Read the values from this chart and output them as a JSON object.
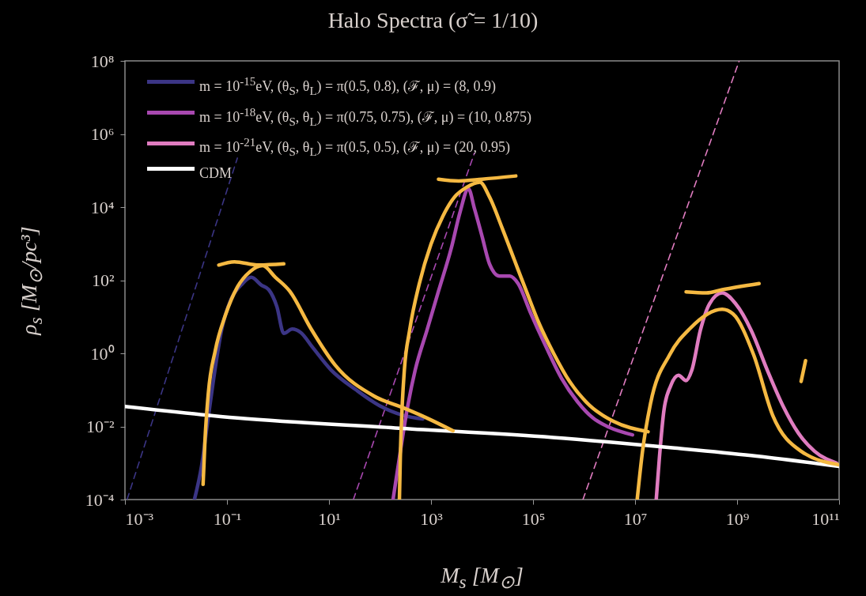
{
  "chart_data": {
    "type": "line",
    "title": "Halo Spectra (σ̃ = 1/10)",
    "xlabel": "M$_{s}$ [M$_{⊙}$]",
    "ylabel": "ρ$_{s}$ [M$_{⊙}$/pc³]",
    "log": "xy",
    "grid": false,
    "legend": "top left",
    "xlim": [
      0.001,
      100000000000
    ],
    "ylim": [
      0.0001,
      100000000
    ],
    "xticks": [
      {
        "value": 0.001,
        "label": "10⁻³"
      },
      {
        "value": 0.1,
        "label": "10⁻¹"
      },
      {
        "value": 10,
        "label": "10¹"
      },
      {
        "value": 1000,
        "label": "10³"
      },
      {
        "value": 100000,
        "label": "10⁵"
      },
      {
        "value": 10000000,
        "label": "10⁷"
      },
      {
        "value": 1000000000,
        "label": "10⁹"
      },
      {
        "value": 100000000000,
        "label": "10¹¹"
      }
    ],
    "yticks": [
      {
        "value": 0.0001,
        "label": "10⁻⁴"
      },
      {
        "value": 0.01,
        "label": "10⁻²"
      },
      {
        "value": 1,
        "label": "10⁰"
      },
      {
        "value": 100,
        "label": "10²"
      },
      {
        "value": 10000,
        "label": "10⁴"
      },
      {
        "value": 1000000,
        "label": "10⁶"
      },
      {
        "value": 100000000,
        "label": "10⁸"
      }
    ],
    "series": [
      {
        "color": "#3b3585",
        "line_style": "dashed",
        "x": [
          0.0011,
          0.16
        ],
        "values": [
          0.0001,
          220000
        ]
      },
      {
        "color": "#a848b0",
        "line_style": "dashed",
        "x": [
          30,
          7100
        ],
        "values": [
          0.0001,
          300000
        ]
      },
      {
        "color": "#e07cc0",
        "line_style": "dashed",
        "x": [
          950000,
          1100000000
        ],
        "values": [
          0.0001,
          100000000
        ]
      },
      {
        "name": "m = 10$^{-15}$eV, (θ$_{S}$, θ$_{L}$) = π(0.5, 0.8), (ℱ, μ) = (8, 0.9)",
        "color": "#3b3585",
        "line_style": "solid",
        "x": [
          0.023,
          0.032,
          0.041,
          0.055,
          0.078,
          0.12,
          0.19,
          0.3,
          0.47,
          0.66,
          0.95,
          1.3,
          1.9,
          2.8,
          4.7,
          11,
          34,
          98,
          290,
          690
        ],
        "values": [
          0.0001,
          0.00089,
          0.011,
          0.21,
          4.2,
          30,
          74,
          120,
          74,
          55,
          19,
          3.5,
          4.6,
          3.7,
          1.5,
          0.35,
          0.1,
          0.037,
          0.02,
          0.016
        ]
      },
      {
        "name": "m = 10$^{-18}$eV, (θ$_{S}$, θ$_{L}$) = π(0.75, 0.75), (ℱ, μ) = (10, 0.875)",
        "color": "#a848b0",
        "line_style": "solid",
        "x": [
          180,
          240,
          340,
          490,
          830,
          1400,
          2500,
          3700,
          5400,
          7100,
          10000,
          14000,
          22000,
          35000,
          51000,
          87000,
          180000,
          360000,
          740000,
          1500000,
          3100000,
          8900000
        ],
        "values": [
          0.0001,
          0.0014,
          0.029,
          0.35,
          4.2,
          50,
          760,
          7200,
          32000,
          9100,
          1600,
          280,
          130,
          130,
          81,
          14,
          1.5,
          0.21,
          0.048,
          0.017,
          0.0095,
          0.0059
        ]
      },
      {
        "name": "m = 10$^{-21}$eV, (θ$_{S}$, θ$_{L}$) = π(0.5, 0.5), (ℱ, μ) = (20, 0.95)",
        "color": "#e07cc0",
        "line_style": "solid",
        "x": [
          26000000,
          30000000,
          37000000,
          50000000,
          71000000,
          100000000,
          130000000,
          190000000,
          290000000,
          510000000,
          930000000,
          1900000000,
          3900000000,
          7900000000,
          16000000000,
          33000000000,
          89000000000
        ],
        "values": [
          0.0001,
          0.0014,
          0.029,
          0.13,
          0.25,
          0.18,
          0.35,
          4.2,
          23,
          45,
          23,
          4.2,
          0.35,
          0.037,
          0.0065,
          0.0021,
          0.001
        ]
      },
      {
        "name": "CDM",
        "color": "#ffffff",
        "line_style": "solid",
        "x": [
          0.001,
          0.16,
          200,
          250000,
          54000000,
          1900000000,
          100000000000
        ],
        "values": [
          0.035,
          0.017,
          0.0091,
          0.005,
          0.0026,
          0.0016,
          0.00081
        ]
      },
      {
        "color": "#f5b942",
        "line_style": "solid",
        "x": [
          0.034,
          0.037,
          0.043,
          0.059,
          0.093,
          0.16,
          0.28,
          0.5,
          0.89,
          1.7,
          4.4,
          13,
          76,
          290,
          830,
          2700
        ],
        "values": [
          0.00026,
          0.004,
          0.078,
          1.2,
          11,
          65,
          170,
          250,
          120,
          50,
          4.8,
          0.49,
          0.068,
          0.032,
          0.017,
          0.0076
        ]
      },
      {
        "color": "#f5b942",
        "line_style": "solid",
        "x": [
          0.069,
          0.14,
          0.42,
          1.3
        ],
        "values": [
          260,
          320,
          260,
          280
        ]
      },
      {
        "color": "#f5b942",
        "line_style": "solid",
        "x": [
          240,
          250,
          270,
          300,
          380,
          590,
          1000,
          1700,
          2900,
          5000,
          9100,
          14000,
          25000,
          43000,
          74000,
          130000,
          260000,
          520000,
          1300000,
          3700000,
          18000000
        ],
        "values": [
          0.0001,
          0.0014,
          0.029,
          0.35,
          4.2,
          81,
          980,
          5600,
          19000,
          35000,
          48000,
          19000,
          2600,
          360,
          50,
          6.8,
          0.93,
          0.17,
          0.037,
          0.014,
          0.0072
        ]
      },
      {
        "color": "#f5b942",
        "line_style": "solid",
        "x": [
          1400,
          3500,
          10000,
          46000
        ],
        "values": [
          58000,
          52000,
          58000,
          71000
        ]
      },
      {
        "color": "#f5b942",
        "line_style": "solid",
        "x": [
          11000000,
          14000000,
          20000000,
          48000000,
          120000000,
          510000000,
          830000000,
          2100000000,
          5000000000,
          18000000000,
          100000000000
        ],
        "values": [
          0.0001,
          0.0021,
          0.041,
          0.93,
          4.8,
          16,
          12,
          0.93,
          0.02,
          0.0021,
          0.00089
        ]
      },
      {
        "color": "#f5b942",
        "line_style": "solid",
        "x": [
          100000000,
          250000000,
          510000000,
          2700000000
        ],
        "values": [
          48,
          45,
          55,
          81
        ]
      },
      {
        "color": "#f5b942",
        "line_style": "solid",
        "x": [
          18000000000,
          22000000000
        ],
        "values": [
          0.17,
          0.63
        ]
      }
    ]
  }
}
